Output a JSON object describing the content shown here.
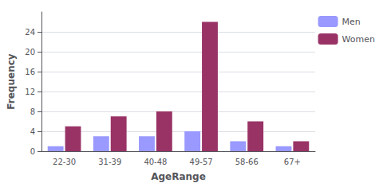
{
  "chart_data": {
    "type": "bar",
    "xlabel": "AgeRange",
    "ylabel": "Frequency",
    "categories": [
      "22-30",
      "31-39",
      "40-48",
      "49-57",
      "58-66",
      "67+"
    ],
    "series": [
      {
        "name": "Men",
        "color": "#9999ff",
        "values": [
          1,
          3,
          3,
          4,
          2,
          1
        ]
      },
      {
        "name": "Women",
        "color": "#993366",
        "values": [
          5,
          7,
          8,
          26,
          6,
          2
        ]
      }
    ],
    "ylim": [
      0,
      28
    ],
    "yticks": [
      0,
      4,
      8,
      12,
      16,
      20,
      24
    ],
    "grid": true,
    "legend": "upper right"
  }
}
